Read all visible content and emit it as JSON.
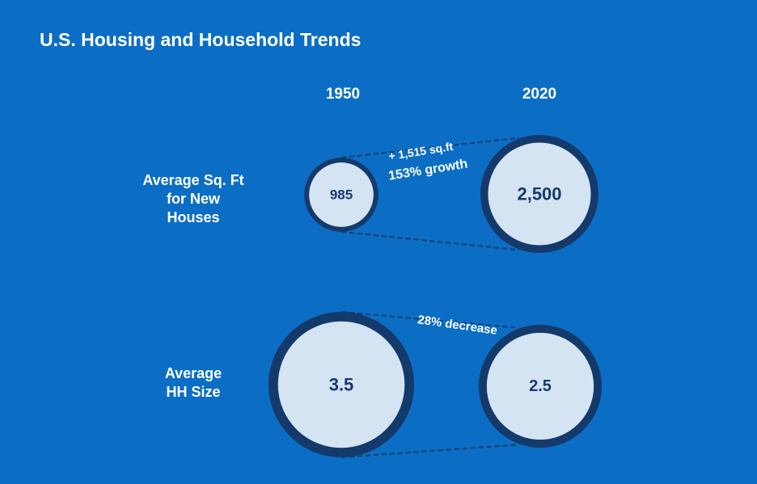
{
  "chart_data": {
    "type": "bubble-comparison",
    "title": "U.S. Housing and Household Trends",
    "years": [
      "1950",
      "2020"
    ],
    "rows": [
      {
        "label_lines": [
          "Average Sq. Ft",
          "for New",
          "Houses"
        ],
        "values": [
          985,
          2500
        ],
        "value_labels": [
          "985",
          "2,500"
        ],
        "annotation_lines": [
          "+ 1,515 sq.ft",
          "153% growth"
        ]
      },
      {
        "label_lines": [
          "Average",
          "HH Size"
        ],
        "values": [
          3.5,
          2.5
        ],
        "value_labels": [
          "3.5",
          "2.5"
        ],
        "annotation_lines": [
          "28% decrease"
        ]
      }
    ]
  },
  "colors": {
    "background": "#0b6ec4",
    "bubble_fill": "#d5e4f3",
    "bubble_stroke": "#143a6b",
    "text_light": "#ffffff",
    "text_dark": "#143a6b"
  }
}
